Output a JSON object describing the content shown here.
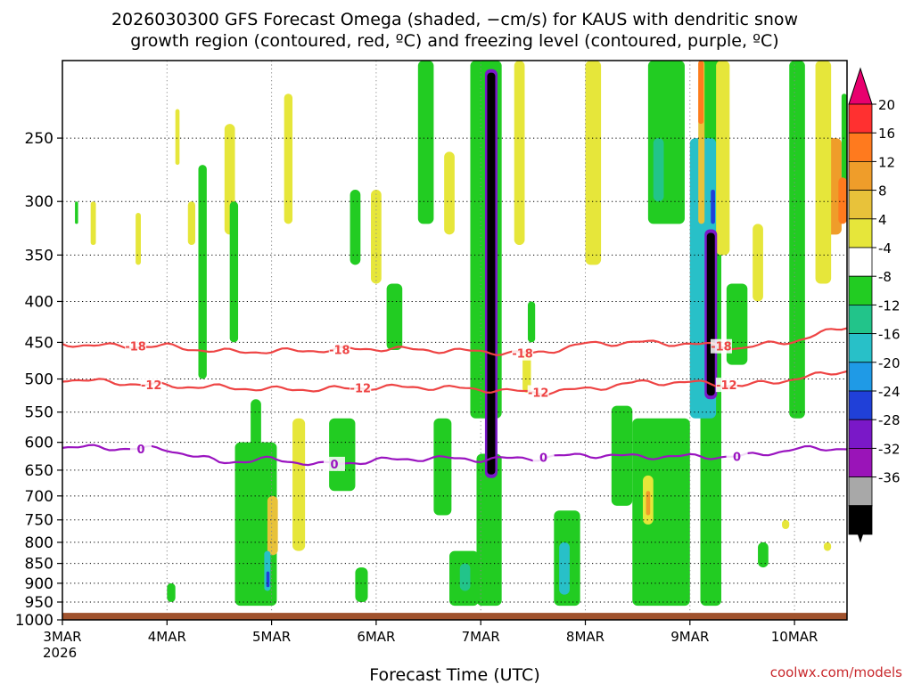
{
  "chart_data": {
    "type": "heatmap",
    "title_line1": "2026030300 GFS Forecast Omega (shaded, −cm/s) for KAUS with dendritic snow",
    "title_line2": "growth region (contoured, red, ºC) and freezing level (contoured, purple, ºC)",
    "xlabel": "Forecast Time (UTC)",
    "ylabel": "",
    "credit": "coolwx.com/models",
    "x_year": "2026",
    "x_ticks": [
      "3MAR",
      "4MAR",
      "5MAR",
      "6MAR",
      "7MAR",
      "8MAR",
      "9MAR",
      "10MAR"
    ],
    "x_range_days": [
      0,
      7.5
    ],
    "y_ticks": [
      250,
      300,
      350,
      400,
      450,
      500,
      550,
      600,
      650,
      700,
      750,
      800,
      850,
      900,
      950,
      1000
    ],
    "y_range": [
      200,
      1000
    ],
    "y_scale": "log",
    "y_direction": "reversed",
    "grid": true,
    "colorbar": {
      "labels": [
        "20",
        "16",
        "12",
        "8",
        "4",
        "-4",
        "-8",
        "-12",
        "-16",
        "-20",
        "-24",
        "-28",
        "-32",
        "-36"
      ],
      "values": [
        20,
        16,
        12,
        8,
        4,
        -4,
        -8,
        -12,
        -16,
        -20,
        -24,
        -28,
        -32,
        -36
      ],
      "colors": [
        "#ff3030",
        "#ff7a1e",
        "#ef9d2a",
        "#e8c23a",
        "#e6e63a",
        "#ffffff",
        "#22cc22",
        "#22c48a",
        "#28c0c8",
        "#1f9ae6",
        "#2040d8",
        "#7a18c8",
        "#9a14b8",
        "#a8a8a8",
        "#000000"
      ],
      "top_arrow_color": "#e8006e",
      "bottom_arrow_color": "#000000"
    },
    "contours": [
      {
        "label": "-18",
        "color": "#ee4444",
        "x": [
          0,
          0.5,
          1.0,
          1.5,
          2.0,
          2.5,
          3.0,
          3.5,
          4.0,
          4.5,
          5.0,
          5.5,
          6.0,
          6.5,
          7.0,
          7.5
        ],
        "p": [
          452,
          455,
          455,
          462,
          462,
          460,
          458,
          460,
          462,
          465,
          452,
          450,
          452,
          457,
          448,
          430
        ],
        "label_days": [
          0.7,
          2.65,
          4.4,
          6.3
        ]
      },
      {
        "label": "-12",
        "color": "#ee4444",
        "x": [
          0,
          0.5,
          1.0,
          1.5,
          2.0,
          2.5,
          3.0,
          3.5,
          4.0,
          4.5,
          5.0,
          5.5,
          6.0,
          6.5,
          7.0,
          7.5
        ],
        "p": [
          500,
          505,
          510,
          512,
          515,
          515,
          512,
          512,
          515,
          520,
          515,
          505,
          505,
          510,
          500,
          488
        ],
        "label_days": [
          0.85,
          2.85,
          4.55,
          6.35
        ]
      },
      {
        "label": "0",
        "color": "#9a14c0",
        "x": [
          0,
          0.5,
          1.0,
          1.5,
          2.0,
          2.5,
          3.0,
          3.5,
          4.0,
          4.5,
          5.0,
          5.5,
          6.0,
          6.5,
          7.0,
          7.5
        ],
        "p": [
          608,
          610,
          612,
          635,
          630,
          640,
          632,
          628,
          630,
          628,
          622,
          625,
          625,
          625,
          612,
          610
        ],
        "label_days": [
          0.75,
          2.6,
          4.6,
          6.45
        ]
      }
    ],
    "terrain": {
      "from_pressure": 980,
      "to_pressure": 1000,
      "color": "#a0522d"
    },
    "shaded_regions": [
      {
        "value": 6,
        "x": [
          0.27,
          0.32
        ],
        "p": [
          300,
          340
        ]
      },
      {
        "value": -6,
        "x": [
          0.12,
          0.15
        ],
        "p": [
          300,
          320
        ]
      },
      {
        "value": 6,
        "x": [
          0.7,
          0.75
        ],
        "p": [
          310,
          360
        ]
      },
      {
        "value": 6,
        "x": [
          1.08,
          1.12
        ],
        "p": [
          230,
          270
        ]
      },
      {
        "value": -6,
        "x": [
          1.3,
          1.38
        ],
        "p": [
          270,
          500
        ]
      },
      {
        "value": 6,
        "x": [
          1.55,
          1.65
        ],
        "p": [
          240,
          330
        ]
      },
      {
        "value": -6,
        "x": [
          1.8,
          1.9
        ],
        "p": [
          530,
          720
        ]
      },
      {
        "value": -6,
        "x": [
          1.6,
          1.68
        ],
        "p": [
          300,
          450
        ]
      },
      {
        "value": 6,
        "x": [
          1.2,
          1.27
        ],
        "p": [
          300,
          340
        ]
      },
      {
        "value": -6,
        "x": [
          1.0,
          1.08
        ],
        "p": [
          900,
          950
        ]
      },
      {
        "value": -6,
        "x": [
          1.65,
          2.05
        ],
        "p": [
          600,
          960
        ]
      },
      {
        "value": 8,
        "x": [
          1.96,
          2.06
        ],
        "p": [
          700,
          830
        ]
      },
      {
        "value": -14,
        "x": [
          1.93,
          1.99
        ],
        "p": [
          820,
          920
        ]
      },
      {
        "value": -22,
        "x": [
          1.95,
          1.98
        ],
        "p": [
          870,
          910
        ]
      },
      {
        "value": 6,
        "x": [
          2.2,
          2.32
        ],
        "p": [
          560,
          820
        ]
      },
      {
        "value": 6,
        "x": [
          2.12,
          2.2
        ],
        "p": [
          220,
          320
        ]
      },
      {
        "value": -6,
        "x": [
          2.75,
          2.85
        ],
        "p": [
          290,
          360
        ]
      },
      {
        "value": 6,
        "x": [
          2.95,
          3.05
        ],
        "p": [
          290,
          380
        ]
      },
      {
        "value": -6,
        "x": [
          2.55,
          2.8
        ],
        "p": [
          560,
          690
        ]
      },
      {
        "value": -6,
        "x": [
          2.8,
          2.92
        ],
        "p": [
          860,
          950
        ]
      },
      {
        "value": -6,
        "x": [
          3.1,
          3.25
        ],
        "p": [
          380,
          460
        ]
      },
      {
        "value": -6,
        "x": [
          3.4,
          3.55
        ],
        "p": [
          200,
          320
        ]
      },
      {
        "value": -6,
        "x": [
          3.55,
          3.72
        ],
        "p": [
          560,
          740
        ]
      },
      {
        "value": 6,
        "x": [
          3.65,
          3.75
        ],
        "p": [
          260,
          330
        ]
      },
      {
        "value": -6,
        "x": [
          3.7,
          3.98
        ],
        "p": [
          820,
          960
        ]
      },
      {
        "value": -12,
        "x": [
          3.8,
          3.9
        ],
        "p": [
          850,
          920
        ]
      },
      {
        "value": -6,
        "x": [
          3.9,
          4.2
        ],
        "p": [
          200,
          560
        ]
      },
      {
        "value": -6,
        "x": [
          3.96,
          4.2
        ],
        "p": [
          620,
          960
        ]
      },
      {
        "value": 6,
        "x": [
          4.32,
          4.42
        ],
        "p": [
          200,
          340
        ]
      },
      {
        "value": 6,
        "x": [
          4.4,
          4.48
        ],
        "p": [
          460,
          520
        ]
      },
      {
        "value": -6,
        "x": [
          4.45,
          4.52
        ],
        "p": [
          400,
          450
        ]
      },
      {
        "value": -6,
        "x": [
          4.7,
          4.95
        ],
        "p": [
          730,
          960
        ]
      },
      {
        "value": -14,
        "x": [
          4.75,
          4.85
        ],
        "p": [
          800,
          930
        ]
      },
      {
        "value": 12,
        "x": [
          5.05,
          5.12
        ],
        "p": [
          260,
          330
        ]
      },
      {
        "value": 6,
        "x": [
          5.0,
          5.15
        ],
        "p": [
          200,
          360
        ]
      },
      {
        "value": -6,
        "x": [
          5.25,
          5.45
        ],
        "p": [
          540,
          720
        ]
      },
      {
        "value": -6,
        "x": [
          5.6,
          5.95
        ],
        "p": [
          200,
          320
        ]
      },
      {
        "value": -12,
        "x": [
          5.65,
          5.75
        ],
        "p": [
          250,
          300
        ]
      },
      {
        "value": -6,
        "x": [
          5.45,
          6.0
        ],
        "p": [
          560,
          960
        ]
      },
      {
        "value": 6,
        "x": [
          5.55,
          5.65
        ],
        "p": [
          660,
          760
        ]
      },
      {
        "value": 12,
        "x": [
          5.58,
          5.62
        ],
        "p": [
          690,
          740
        ]
      },
      {
        "value": -6,
        "x": [
          6.1,
          6.3
        ],
        "p": [
          200,
          960
        ]
      },
      {
        "value": -14,
        "x": [
          6.0,
          6.25
        ],
        "p": [
          250,
          560
        ]
      },
      {
        "value": 8,
        "x": [
          6.08,
          6.14
        ],
        "p": [
          200,
          320
        ]
      },
      {
        "value": 18,
        "x": [
          6.08,
          6.13
        ],
        "p": [
          200,
          240
        ]
      },
      {
        "value": -22,
        "x": [
          6.2,
          6.24
        ],
        "p": [
          290,
          320
        ]
      },
      {
        "value": 6,
        "x": [
          6.25,
          6.38
        ],
        "p": [
          200,
          350
        ]
      },
      {
        "value": -6,
        "x": [
          6.35,
          6.55
        ],
        "p": [
          380,
          480
        ]
      },
      {
        "value": 6,
        "x": [
          6.6,
          6.7
        ],
        "p": [
          320,
          400
        ]
      },
      {
        "value": -6,
        "x": [
          6.65,
          6.75
        ],
        "p": [
          800,
          860
        ]
      },
      {
        "value": 6,
        "x": [
          6.88,
          6.95
        ],
        "p": [
          750,
          770
        ]
      },
      {
        "value": -6,
        "x": [
          6.95,
          7.1
        ],
        "p": [
          200,
          560
        ]
      },
      {
        "value": 12,
        "x": [
          7.3,
          7.45
        ],
        "p": [
          250,
          330
        ]
      },
      {
        "value": 6,
        "x": [
          7.2,
          7.35
        ],
        "p": [
          200,
          380
        ]
      },
      {
        "value": -6,
        "x": [
          7.45,
          7.5
        ],
        "p": [
          220,
          300
        ]
      },
      {
        "value": 16,
        "x": [
          7.42,
          7.5
        ],
        "p": [
          280,
          320
        ]
      },
      {
        "value": 6,
        "x": [
          7.28,
          7.35
        ],
        "p": [
          800,
          820
        ]
      }
    ],
    "vertical_features": [
      {
        "x_day": 4.1,
        "p": [
          205,
          665
        ],
        "inner": "#000000",
        "outer": "#7a18c8"
      },
      {
        "x_day": 6.2,
        "p": [
          325,
          530
        ],
        "inner": "#000000",
        "outer": "#7a18c8"
      }
    ]
  }
}
